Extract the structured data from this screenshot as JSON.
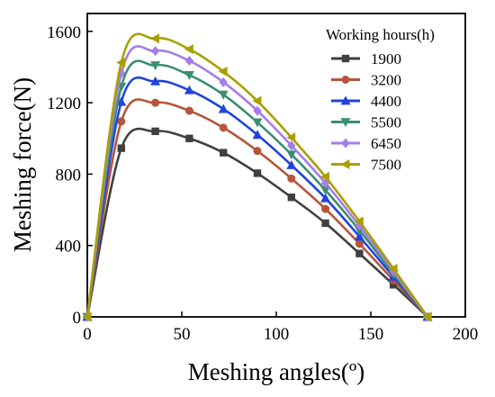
{
  "chart_data": {
    "type": "line",
    "xlabel": "Meshing angles(º)",
    "ylabel": "Meshing force(N)",
    "xlim": [
      0,
      200
    ],
    "ylim": [
      0,
      1700
    ],
    "x_ticks": [
      "0",
      "50",
      "100",
      "150",
      "200"
    ],
    "y_ticks": [
      "0",
      "400",
      "800",
      "1200",
      "1600"
    ],
    "grid": false,
    "legend_position": "top-right",
    "legend_title": "Working hours(h)",
    "x": [
      0,
      18,
      36,
      54,
      72,
      90,
      108,
      126,
      144,
      162,
      180
    ],
    "series": [
      {
        "name": "1900",
        "color": "#404040",
        "marker": "square",
        "values": [
          0,
          945,
          1040,
          1000,
          920,
          805,
          670,
          525,
          355,
          180,
          0
        ]
      },
      {
        "name": "3200",
        "color": "#b5553a",
        "marker": "circle",
        "values": [
          0,
          1095,
          1200,
          1155,
          1060,
          930,
          775,
          605,
          410,
          205,
          0
        ]
      },
      {
        "name": "4400",
        "color": "#2244dd",
        "marker": "triangle-up",
        "values": [
          0,
          1205,
          1320,
          1270,
          1165,
          1020,
          850,
          665,
          450,
          225,
          0
        ]
      },
      {
        "name": "5500",
        "color": "#3a8f6e",
        "marker": "triangle-down",
        "values": [
          0,
          1290,
          1410,
          1355,
          1245,
          1090,
          910,
          710,
          485,
          240,
          0
        ]
      },
      {
        "name": "6450",
        "color": "#a47de8",
        "marker": "diamond",
        "values": [
          0,
          1365,
          1490,
          1435,
          1315,
          1155,
          960,
          750,
          510,
          255,
          0
        ]
      },
      {
        "name": "7500",
        "color": "#a8a000",
        "marker": "triangle-left",
        "values": [
          0,
          1425,
          1560,
          1500,
          1375,
          1210,
          1005,
          785,
          535,
          270,
          0
        ]
      }
    ]
  }
}
